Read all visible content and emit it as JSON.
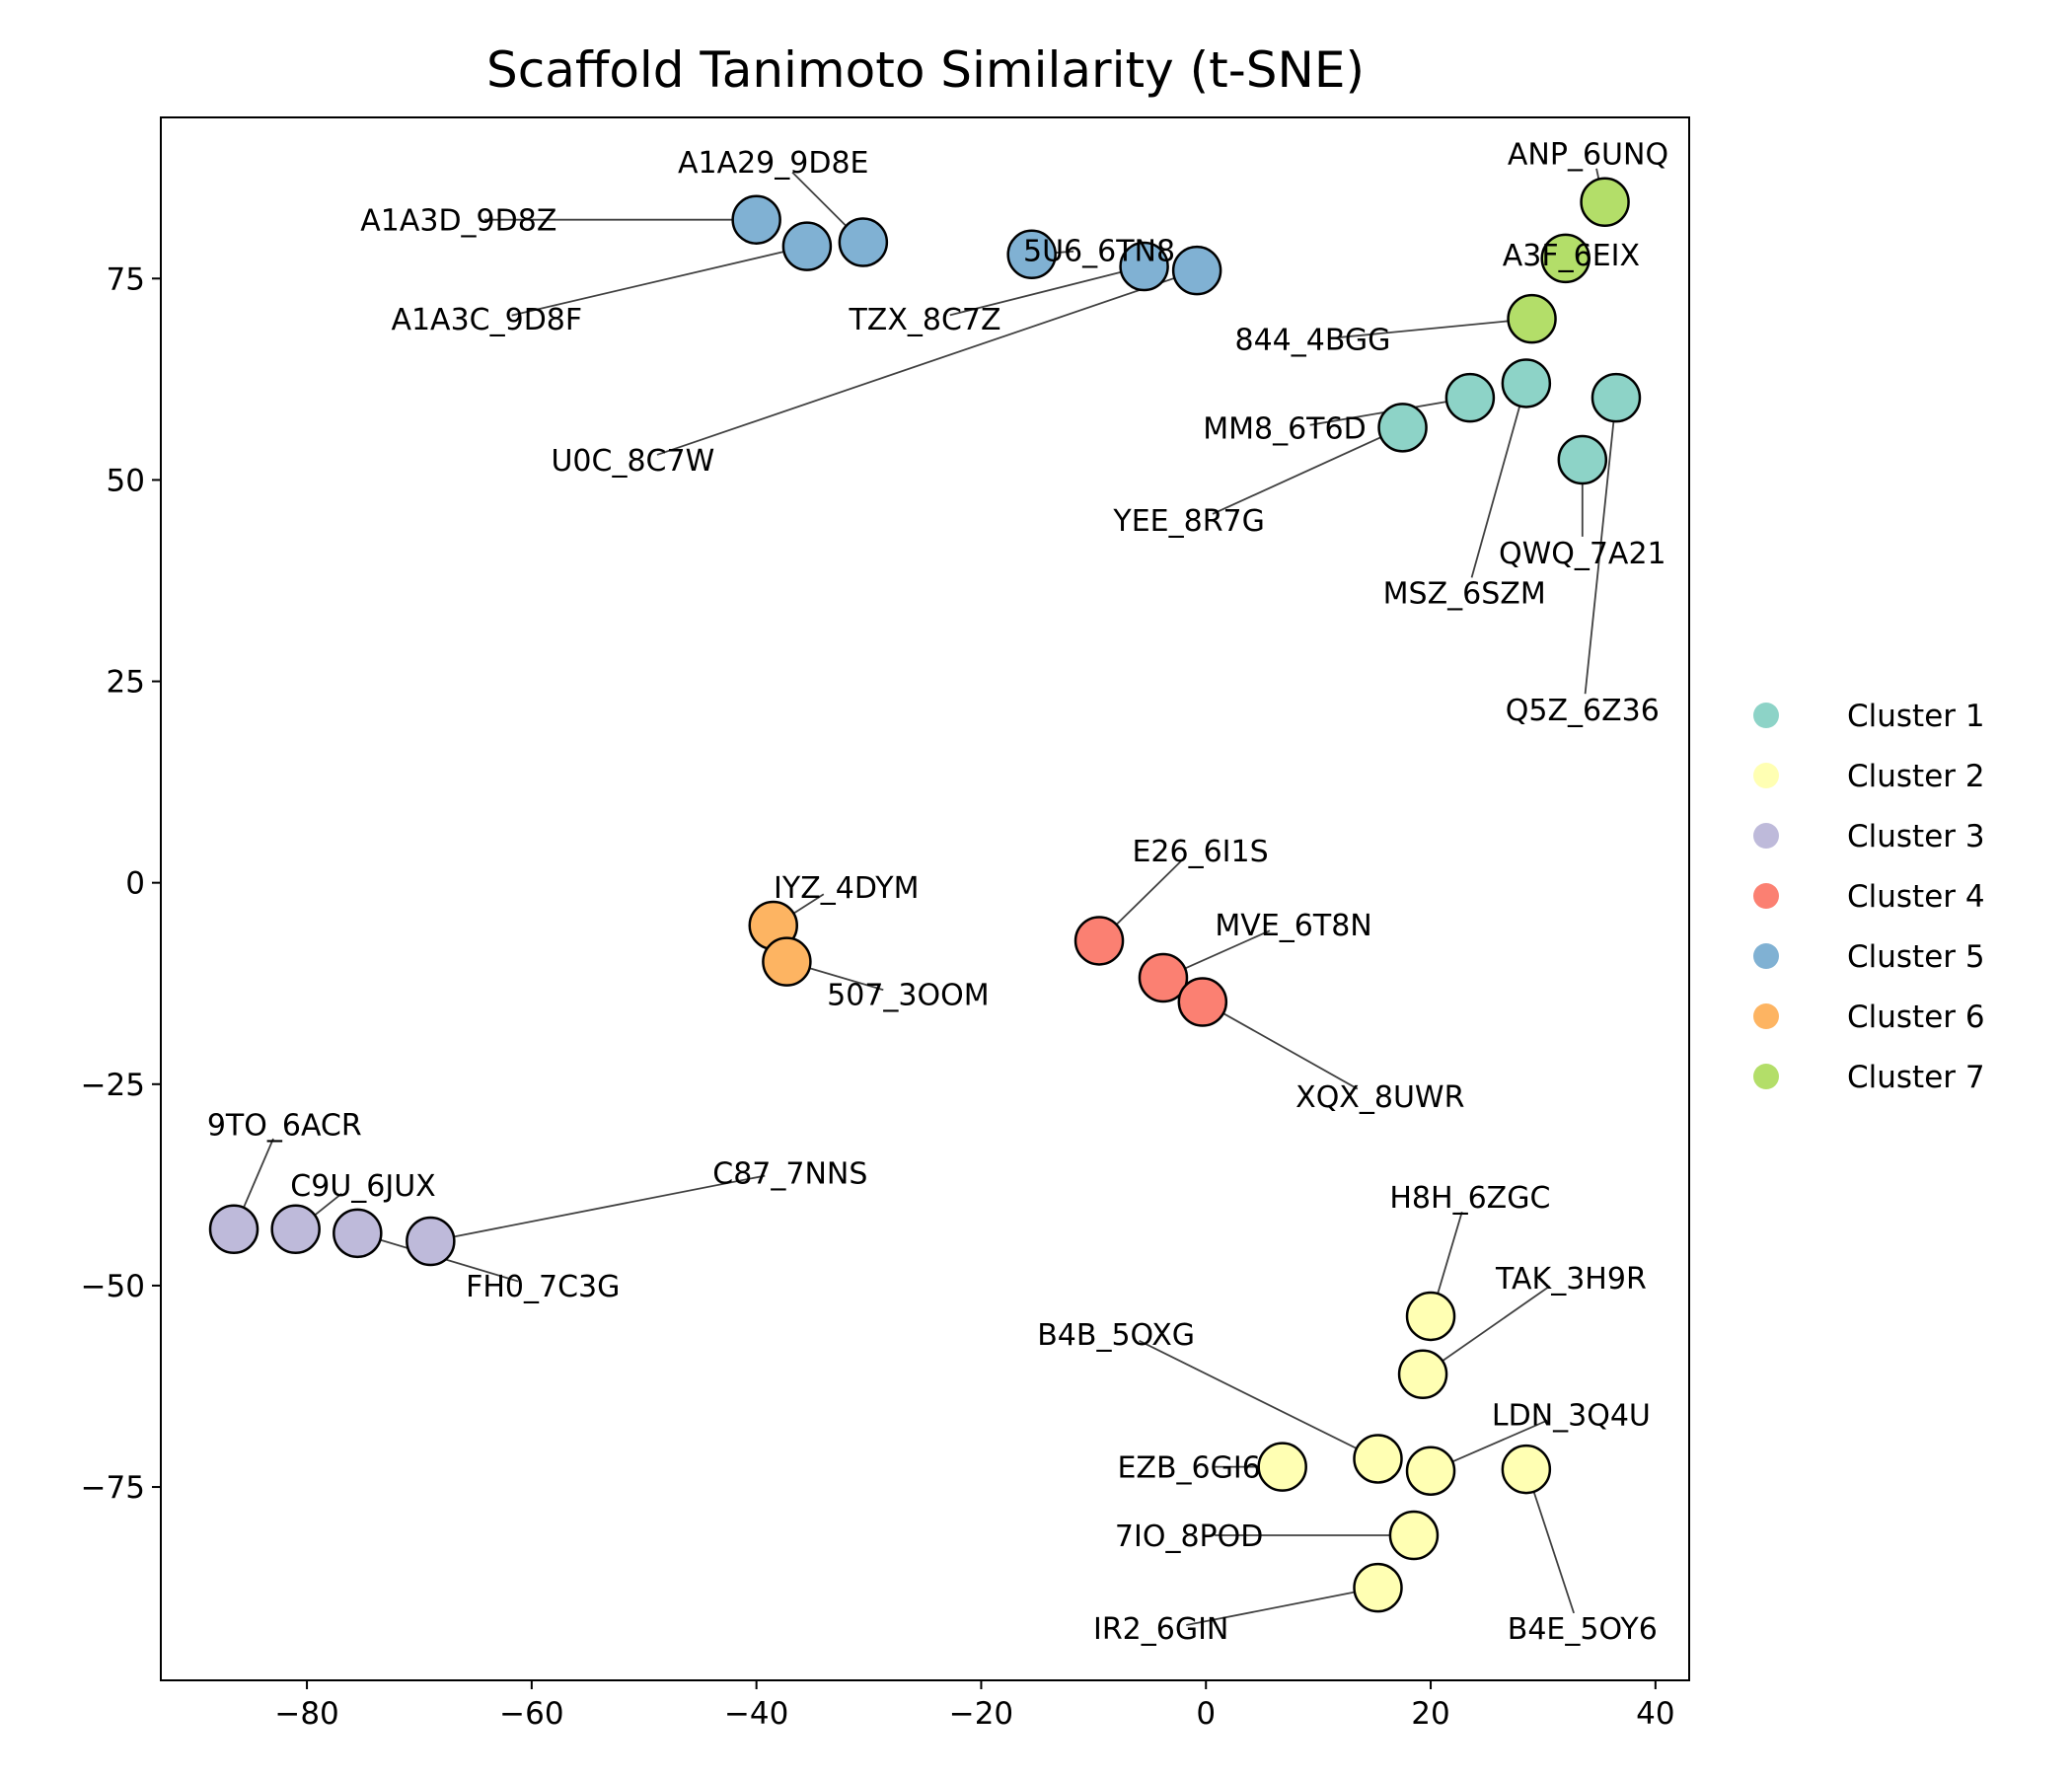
{
  "chart_data": {
    "type": "scatter",
    "title": "Scaffold Tanimoto Similarity (t-SNE)",
    "xlabel": "",
    "ylabel": "",
    "xlim": [
      -93,
      43
    ],
    "ylim": [
      -99,
      95
    ],
    "xticks": [
      -80,
      -60,
      -40,
      -20,
      0,
      20,
      40
    ],
    "yticks": [
      -75,
      -50,
      -25,
      0,
      25,
      50,
      75
    ],
    "grid": false,
    "legend_position": "right",
    "series": [
      {
        "name": "Cluster 1",
        "color": "#8dd3c7",
        "points": [
          {
            "x": 17.5,
            "y": 56.5,
            "label": "YEE_8R7G",
            "lx": -1.5,
            "ly": 45
          },
          {
            "x": 23.5,
            "y": 60.2,
            "label": "MM8_6T6D",
            "lx": 7,
            "ly": 56.5
          },
          {
            "x": 28.5,
            "y": 62.0,
            "label": "MSZ_6SZM",
            "lx": 23,
            "ly": 36
          },
          {
            "x": 33.5,
            "y": 52.5,
            "label": "QWQ_7A21",
            "lx": 33.5,
            "ly": 41
          },
          {
            "x": 36.5,
            "y": 60.2,
            "label": "Q5Z_6Z36",
            "lx": 33.5,
            "ly": 21.5
          }
        ]
      },
      {
        "name": "Cluster 2",
        "color": "#ffffb3",
        "points": [
          {
            "x": 20.0,
            "y": -53.8,
            "label": "H8H_6ZGC",
            "lx": 23.5,
            "ly": -39
          },
          {
            "x": 19.3,
            "y": -61.0,
            "label": "TAK_3H9R",
            "lx": 32.5,
            "ly": -49
          },
          {
            "x": 15.3,
            "y": -71.5,
            "label": "B4B_5OXG",
            "lx": -8,
            "ly": -56
          },
          {
            "x": 6.8,
            "y": -72.5,
            "label": "EZB_6GI6",
            "lx": -1.5,
            "ly": -72.5
          },
          {
            "x": 20.0,
            "y": -73.0,
            "label": "LDN_3Q4U",
            "lx": 32.5,
            "ly": -66
          },
          {
            "x": 28.5,
            "y": -72.8,
            "label": "B4E_5OY6",
            "lx": 33.5,
            "ly": -92.5
          },
          {
            "x": 18.5,
            "y": -81.0,
            "label": "7IO_8POD",
            "lx": -1.5,
            "ly": -81
          },
          {
            "x": 15.3,
            "y": -87.5,
            "label": "IR2_6GIN",
            "lx": -4,
            "ly": -92.5
          }
        ]
      },
      {
        "name": "Cluster 3",
        "color": "#bebada",
        "points": [
          {
            "x": -86.5,
            "y": -43.0,
            "label": "9TO_6ACR",
            "lx": -82,
            "ly": -30
          },
          {
            "x": -81.0,
            "y": -43.0,
            "label": "C9U_6JUX",
            "lx": -75,
            "ly": -37.5
          },
          {
            "x": -75.5,
            "y": -43.5,
            "label": "FH0_7C3G",
            "lx": -59,
            "ly": -50
          },
          {
            "x": -69.0,
            "y": -44.5,
            "label": "C87_7NNS",
            "lx": -37,
            "ly": -36
          }
        ]
      },
      {
        "name": "Cluster 4",
        "color": "#fb8072",
        "points": [
          {
            "x": -9.5,
            "y": -7.2,
            "label": "E26_6I1S",
            "lx": -0.5,
            "ly": 4
          },
          {
            "x": -3.8,
            "y": -11.8,
            "label": "MVE_6T8N",
            "lx": 7.8,
            "ly": -5.2
          },
          {
            "x": -0.3,
            "y": -14.8,
            "label": "XQX_8UWR",
            "lx": 15.5,
            "ly": -26.5
          }
        ]
      },
      {
        "name": "Cluster 5",
        "color": "#80b1d3",
        "points": [
          {
            "x": -40.0,
            "y": 82.3,
            "label": "A1A3D_9D8Z",
            "lx": -66.5,
            "ly": 82.3
          },
          {
            "x": -35.5,
            "y": 79.0,
            "label": "A1A3C_9D8F",
            "lx": -64,
            "ly": 70
          },
          {
            "x": -30.5,
            "y": 79.5,
            "label": "A1A29_9D8E",
            "lx": -38.5,
            "ly": 89.5
          },
          {
            "x": -15.5,
            "y": 78.0,
            "label": "5U6_6TN8",
            "lx": -9.5,
            "ly": 78.5
          },
          {
            "x": -5.5,
            "y": 76.5,
            "label": "TZX_8C7Z",
            "lx": -25,
            "ly": 70
          },
          {
            "x": -0.8,
            "y": 76.0,
            "label": "U0C_8C7W",
            "lx": -51,
            "ly": 52.5
          }
        ]
      },
      {
        "name": "Cluster 6",
        "color": "#fdb462",
        "points": [
          {
            "x": -38.5,
            "y": -5.3,
            "label": "IYZ_4DYM",
            "lx": -32,
            "ly": -0.5
          },
          {
            "x": -37.3,
            "y": -9.8,
            "label": "507_3OOM",
            "lx": -26.5,
            "ly": -13.8
          }
        ]
      },
      {
        "name": "Cluster 7",
        "color": "#b3de69",
        "points": [
          {
            "x": 35.5,
            "y": 84.5,
            "label": "ANP_6UNQ",
            "lx": 34,
            "ly": 90.5
          },
          {
            "x": 32.0,
            "y": 77.5,
            "label": "A3F_6EIX",
            "lx": 32.5,
            "ly": 78
          },
          {
            "x": 29.0,
            "y": 70.0,
            "label": "844_4BGG",
            "lx": 9.5,
            "ly": 67.5
          }
        ]
      }
    ]
  }
}
